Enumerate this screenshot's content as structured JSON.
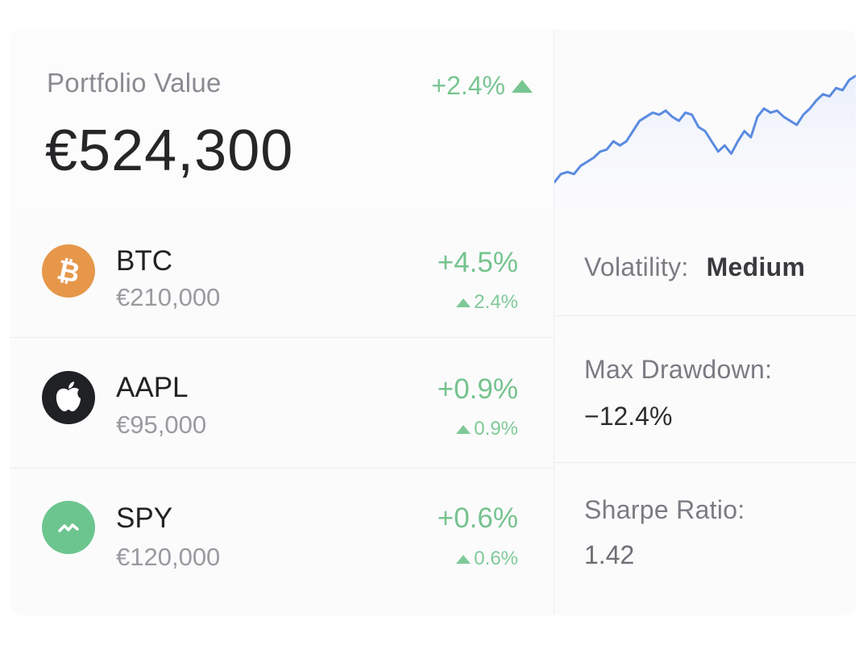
{
  "portfolio": {
    "label": "Portfolio Value",
    "value": "€524,300",
    "change": "+2.4%"
  },
  "assets": [
    {
      "symbol": "BTC",
      "amount": "€210,000",
      "change": "+4.5%",
      "sub_change": "2.4%",
      "icon": "bitcoin-icon",
      "color": "#e6974a"
    },
    {
      "symbol": "AAPL",
      "amount": "€95,000",
      "change": "+0.9%",
      "sub_change": "0.9%",
      "icon": "apple-icon",
      "color": "#202124"
    },
    {
      "symbol": "SPY",
      "amount": "€120,000",
      "change": "+0.6%",
      "sub_change": "0.6%",
      "icon": "trend-wave-icon",
      "color": "#6cc58f"
    }
  ],
  "metrics": {
    "volatility": {
      "label": "Volatility:",
      "value": "Medium"
    },
    "max_drawdown": {
      "label": "Max Drawdown:",
      "value": "−12.4%"
    },
    "sharpe": {
      "label": "Sharpe Ratio:",
      "value": "1.42"
    }
  },
  "chart_data": {
    "type": "line",
    "values": [
      0,
      4,
      5,
      4,
      8,
      10,
      12,
      15,
      16,
      20,
      18,
      20,
      25,
      30,
      32,
      34,
      33,
      35,
      32,
      30,
      34,
      33,
      27,
      25,
      20,
      15,
      18,
      14,
      20,
      25,
      22,
      32,
      36,
      34,
      35,
      32,
      30,
      28,
      33,
      36,
      40,
      43,
      42,
      46,
      45,
      50,
      52
    ],
    "line_color": "#5b8be0",
    "fill_color": "#eef2fb"
  }
}
